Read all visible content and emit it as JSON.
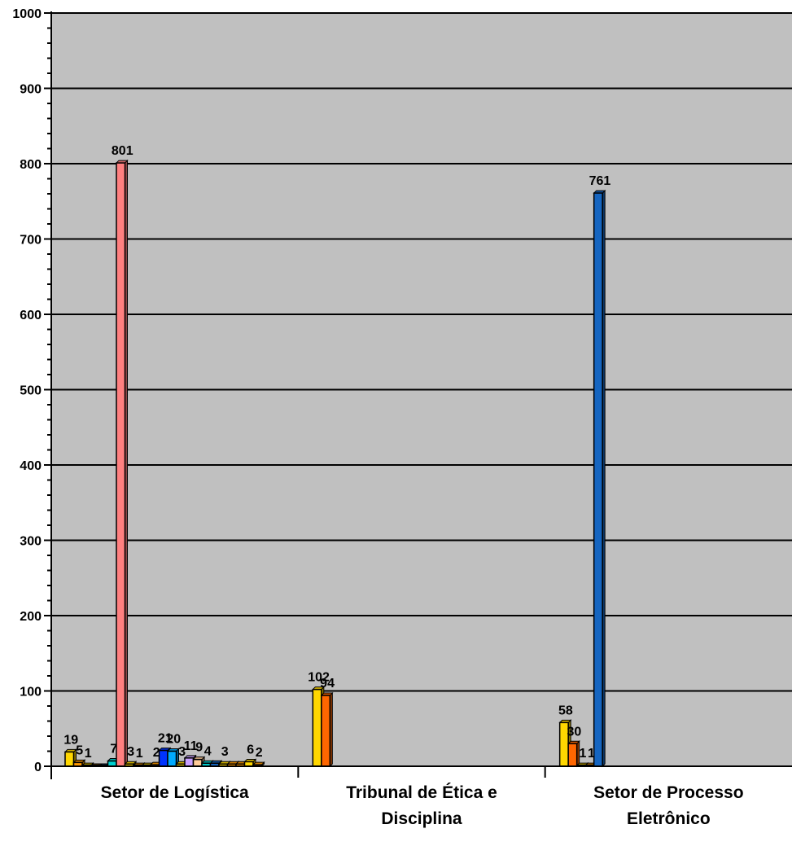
{
  "chart_data": {
    "type": "bar",
    "title": "",
    "xlabel": "",
    "ylabel": "",
    "ylim": [
      0,
      1000
    ],
    "yticks": [
      0,
      100,
      200,
      300,
      400,
      500,
      600,
      700,
      800,
      900,
      1000
    ],
    "ytick_labels": [
      "0",
      "100",
      "200",
      "300",
      "400",
      "500",
      "600",
      "700",
      "800",
      "900",
      "1000"
    ],
    "grid": true,
    "legend": "none",
    "plot_background": "#c0c0c0",
    "categories": [
      {
        "name": "Setor de Logística",
        "label_lines": [
          "Setor de Logística"
        ],
        "bars": [
          {
            "value": 19,
            "label": "19",
            "color": "#ffd700"
          },
          {
            "value": 5,
            "label": "5",
            "color": "#ff9900"
          },
          {
            "value": 1,
            "label": "1",
            "color": "#ffd700"
          },
          {
            "value": 0,
            "label": "",
            "color": "#ff9900"
          },
          {
            "value": 0,
            "label": "",
            "color": "#1565c0"
          },
          {
            "value": 7,
            "label": "7",
            "color": "#00d0d0"
          },
          {
            "value": 801,
            "label": "801",
            "color": "#ff8080"
          },
          {
            "value": 3,
            "label": "3",
            "color": "#ffd700"
          },
          {
            "value": 1,
            "label": "1",
            "color": "#ff9900"
          },
          {
            "value": 1,
            "label": "",
            "color": "#ffd700"
          },
          {
            "value": 2,
            "label": "2",
            "color": "#ff9900"
          },
          {
            "value": 21,
            "label": "21",
            "color": "#0033ff"
          },
          {
            "value": 20,
            "label": "20",
            "color": "#00aaff"
          },
          {
            "value": 3,
            "label": "3",
            "color": "#ffd700"
          },
          {
            "value": 11,
            "label": "11",
            "color": "#c8a0ff"
          },
          {
            "value": 9,
            "label": "9",
            "color": "#ffcc99"
          },
          {
            "value": 4,
            "label": "4",
            "color": "#00d0d0"
          },
          {
            "value": 4,
            "label": "",
            "color": "#1565c0"
          },
          {
            "value": 3,
            "label": "3",
            "color": "#ffd700"
          },
          {
            "value": 3,
            "label": "",
            "color": "#ff9900"
          },
          {
            "value": 3,
            "label": "",
            "color": "#ff9900"
          },
          {
            "value": 6,
            "label": "6",
            "color": "#ffd700"
          },
          {
            "value": 2,
            "label": "2",
            "color": "#ff9900"
          }
        ]
      },
      {
        "name": "Tribunal de Ética e Disciplina",
        "label_lines": [
          "Tribunal de Ética e",
          "Disciplina"
        ],
        "bars": [
          {
            "value": 102,
            "label": "102",
            "color": "#ffd700"
          },
          {
            "value": 94,
            "label": "94",
            "color": "#ff6600"
          }
        ]
      },
      {
        "name": "Setor de Processo Eletrônico",
        "label_lines": [
          "Setor de Processo",
          "Eletrônico"
        ],
        "bars": [
          {
            "value": 58,
            "label": "58",
            "color": "#ffd700"
          },
          {
            "value": 30,
            "label": "30",
            "color": "#ff6600"
          },
          {
            "value": 1,
            "label": "1",
            "color": "#ffd700"
          },
          {
            "value": 1,
            "label": "1",
            "color": "#ff9900"
          },
          {
            "value": 761,
            "label": "761",
            "color": "#1565c0"
          }
        ]
      }
    ]
  }
}
